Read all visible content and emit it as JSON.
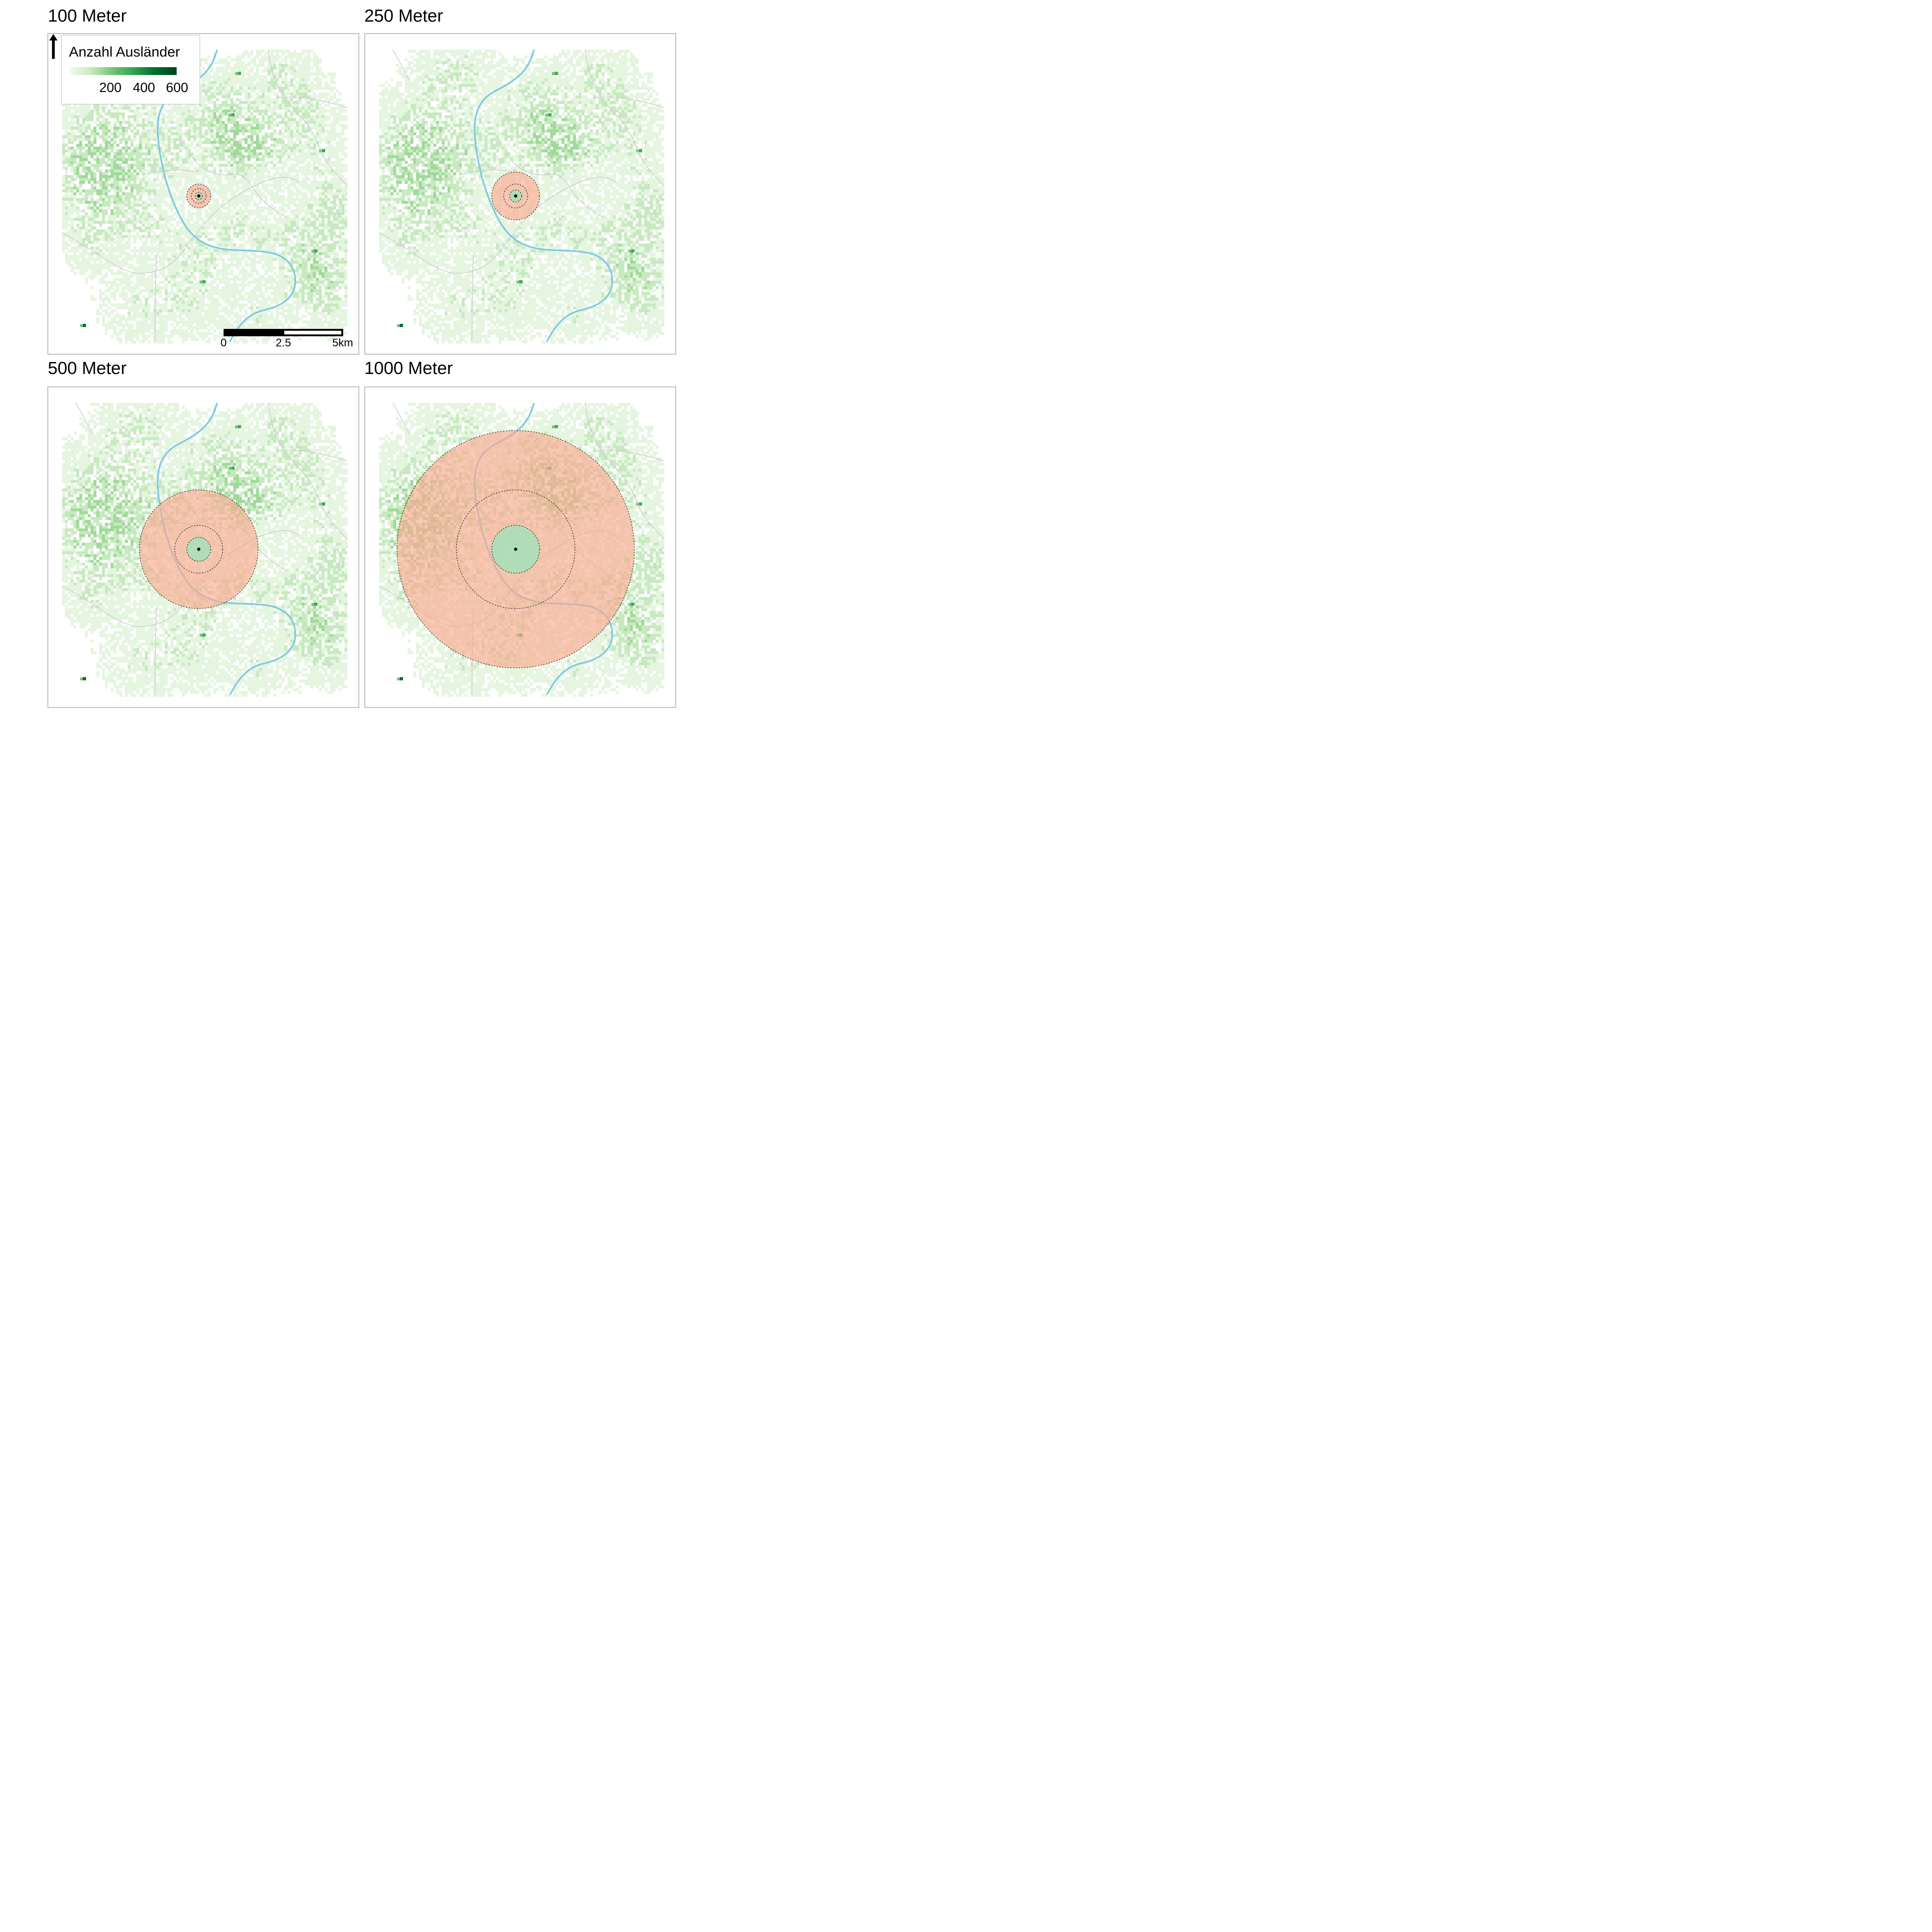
{
  "panels": [
    {
      "title": "100 Meter"
    },
    {
      "title": "250 Meter"
    },
    {
      "title": "500 Meter"
    },
    {
      "title": "1000 Meter"
    }
  ],
  "legend": {
    "title": "Anzahl Ausländer",
    "ticks": [
      "200",
      "400",
      "600"
    ],
    "colors": [
      "#f1f9ef",
      "#c7e9c0",
      "#74c476",
      "#31a354",
      "#006d2c",
      "#00441b"
    ]
  },
  "scalebar": {
    "labels": [
      "0",
      "2.5",
      "5km"
    ]
  },
  "colors": {
    "river": "#7ec8e3",
    "roads": "#cccccc",
    "outer_buffer": "#f9a98f",
    "inner_buffer": "#a8e0b8",
    "frame": "#bdbdbd"
  },
  "chart_data": {
    "type": "map",
    "buffers_m": [
      100,
      250,
      500,
      1000
    ],
    "variable": "Anzahl Ausländer",
    "color_scale_ticks": [
      200,
      400,
      600
    ],
    "scale_km": [
      0,
      2.5,
      5
    ]
  }
}
